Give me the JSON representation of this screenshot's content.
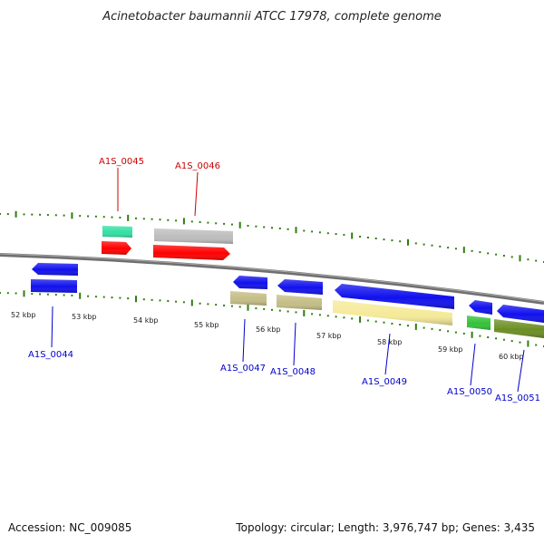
{
  "title": "Acinetobacter baumannii ATCC 17978, complete genome",
  "footer": {
    "accession": "Accession: NC_009085",
    "summary": "Topology: circular; Length: 3,976,747 bp; Genes: 3,435"
  },
  "colors": {
    "backbone": "#777777",
    "forward_label": "#cc0000",
    "reverse_label": "#0000cc",
    "tick": "#2e7d0e",
    "mint": "#33e0a4",
    "red": "#ff0000",
    "silver": "#bdbdbd",
    "blue": "#1010ee",
    "khaki": "#c4bd86",
    "pale_yellow": "#f5ea98",
    "green": "#33c23a",
    "olive": "#6b8e23"
  },
  "kbp_labels": [
    "52 kbp",
    "53 kbp",
    "54 kbp",
    "55 kbp",
    "56 kbp",
    "57 kbp",
    "58 kbp",
    "59 kbp",
    "60 kbp"
  ],
  "gene_labels": {
    "A1S_0044": "A1S_0044",
    "A1S_0045": "A1S_0045",
    "A1S_0046": "A1S_0046",
    "A1S_0047": "A1S_0047",
    "A1S_0048": "A1S_0048",
    "A1S_0049": "A1S_0049",
    "A1S_0050": "A1S_0050",
    "A1S_0051": "A1S_0051"
  }
}
